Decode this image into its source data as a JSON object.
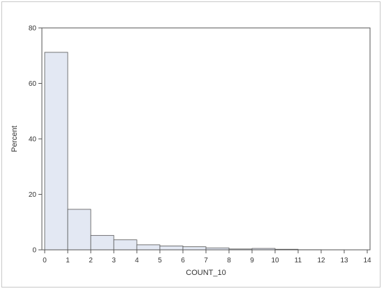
{
  "chart_data": {
    "type": "bar",
    "title": "",
    "xlabel": "COUNT_10",
    "ylabel": "Percent",
    "bins": [
      {
        "start": 0,
        "end": 1,
        "value": 71.2
      },
      {
        "start": 1,
        "end": 2,
        "value": 14.6
      },
      {
        "start": 2,
        "end": 3,
        "value": 5.2
      },
      {
        "start": 3,
        "end": 4,
        "value": 3.6
      },
      {
        "start": 4,
        "end": 5,
        "value": 1.8
      },
      {
        "start": 5,
        "end": 6,
        "value": 1.4
      },
      {
        "start": 6,
        "end": 7,
        "value": 1.1
      },
      {
        "start": 7,
        "end": 8,
        "value": 0.7
      },
      {
        "start": 8,
        "end": 9,
        "value": 0.3
      },
      {
        "start": 9,
        "end": 10,
        "value": 0.5
      },
      {
        "start": 10,
        "end": 11,
        "value": 0.2
      },
      {
        "start": 11,
        "end": 12,
        "value": 0.05
      },
      {
        "start": 12,
        "end": 13,
        "value": 0.03
      },
      {
        "start": 13,
        "end": 14,
        "value": 0.02
      }
    ],
    "xlim": [
      0,
      14
    ],
    "ylim": [
      0,
      80
    ],
    "xticks": [
      "0",
      "1",
      "2",
      "3",
      "4",
      "5",
      "6",
      "7",
      "8",
      "9",
      "10",
      "11",
      "12",
      "13",
      "14"
    ],
    "yticks": [
      "0",
      "20",
      "40",
      "60",
      "80"
    ],
    "grid": false,
    "legend": "none",
    "colors": {
      "bar_fill": "#e3e8f3",
      "bar_stroke": "#555555",
      "axis": "#555555"
    }
  }
}
